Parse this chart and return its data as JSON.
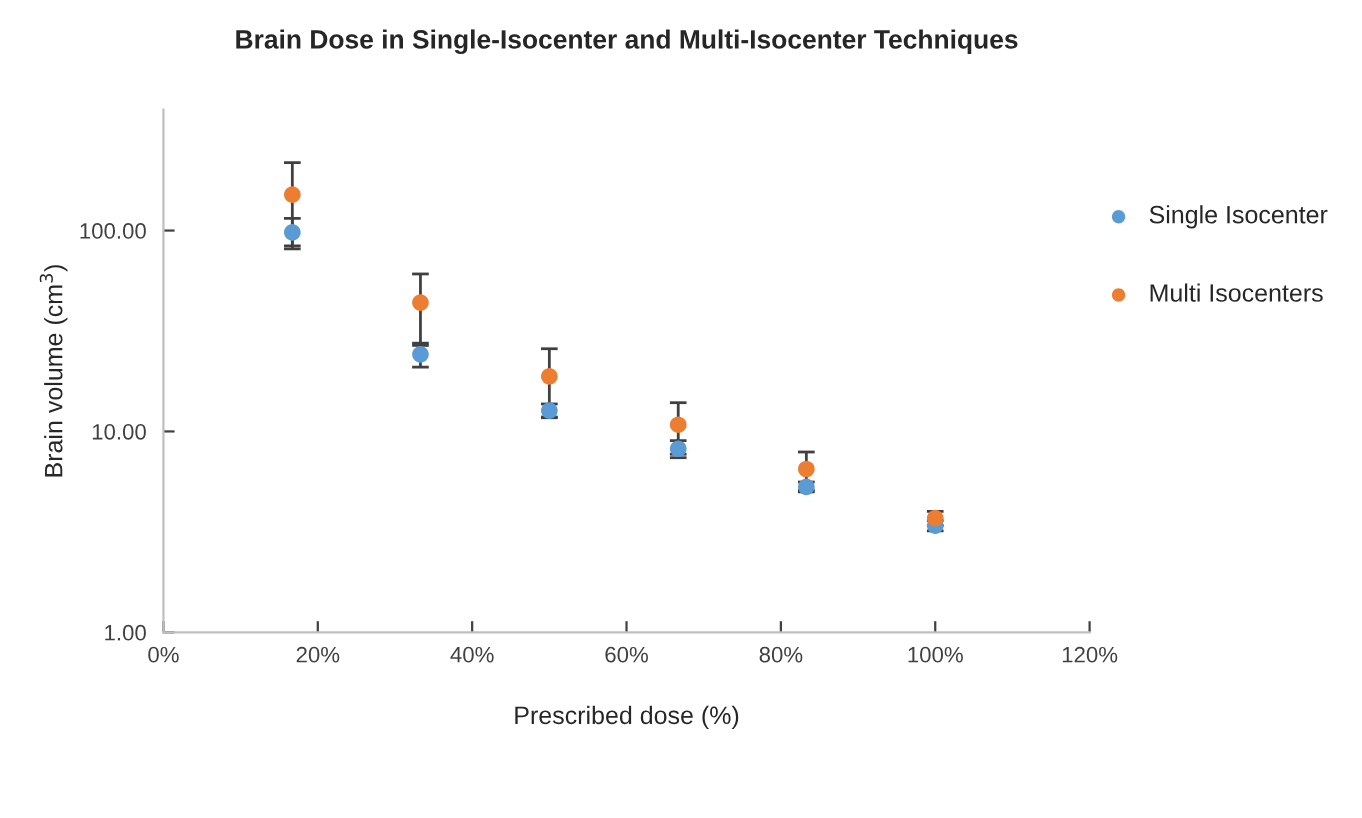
{
  "chart_data": {
    "type": "scatter",
    "title": "Brain Dose in Single-Isocenter and Multi-Isocenter Techniques",
    "xlabel": "Prescribed dose (%)",
    "ylabel": "Brain volume (cm$^{3}$)",
    "x": [
      16.7,
      33.3,
      50,
      66.7,
      83.3,
      100
    ],
    "series": [
      {
        "name": "Single Isocenter",
        "color": "#5b9bd5",
        "values": [
          98,
          24.2,
          12.7,
          8.2,
          5.3,
          3.4
        ],
        "errors": [
          17,
          3.3,
          1,
          0.8,
          0.3,
          0.2
        ]
      },
      {
        "name": "Multi Isocenters",
        "color": "#ed7d31",
        "values": [
          151,
          43.8,
          18.8,
          10.8,
          6.5,
          3.7
        ],
        "errors": [
          67,
          17,
          7,
          3.1,
          1.4,
          0.3
        ]
      }
    ],
    "log": "y",
    "xlim": [
      0,
      120
    ],
    "xticks": [
      {
        "value": 0,
        "label": "0%"
      },
      {
        "value": 20,
        "label": "20%"
      },
      {
        "value": 40,
        "label": "40%"
      },
      {
        "value": 60,
        "label": "60%"
      },
      {
        "value": 80,
        "label": "80%"
      },
      {
        "value": 100,
        "label": "100%"
      },
      {
        "value": 120,
        "label": "120%"
      }
    ],
    "ylim": [
      1,
      400
    ],
    "yticks": [
      {
        "value": 1,
        "label": "1.00"
      },
      {
        "value": 10,
        "label": "10.00"
      },
      {
        "value": 100,
        "label": "100.00"
      }
    ],
    "grid": false,
    "legend": "right",
    "marker": "circle"
  }
}
